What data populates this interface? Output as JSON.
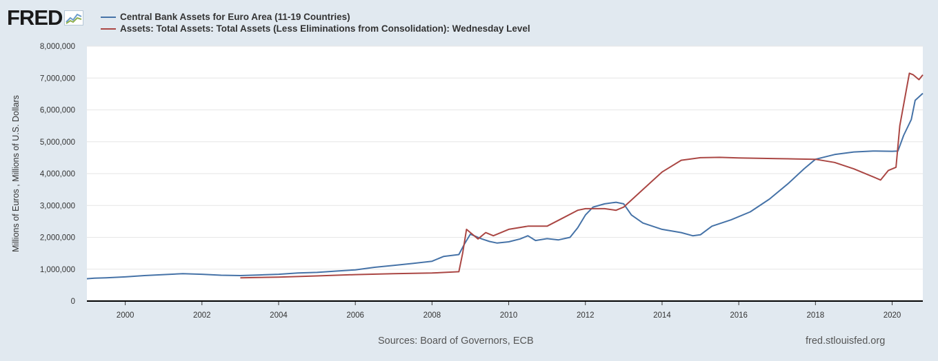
{
  "logo": {
    "text": "FRED",
    "mark_icon": "chart-line-icon"
  },
  "footer": {
    "source": "Sources: Board of Governors, ECB",
    "url": "fred.stlouisfed.org"
  },
  "chart_data": {
    "type": "line",
    "title": "",
    "xlabel": "",
    "ylabel": "Millions of Euros , Millions of U.S. Dollars",
    "xlim": [
      1999.0,
      2020.8
    ],
    "ylim": [
      0,
      8000000
    ],
    "yticks": [
      0,
      1000000,
      2000000,
      3000000,
      4000000,
      5000000,
      6000000,
      7000000,
      8000000
    ],
    "ytick_labels": [
      "0",
      "1,000,000",
      "2,000,000",
      "3,000,000",
      "4,000,000",
      "5,000,000",
      "6,000,000",
      "7,000,000",
      "8,000,000"
    ],
    "xticks": [
      2000,
      2002,
      2004,
      2006,
      2008,
      2010,
      2012,
      2014,
      2016,
      2018,
      2020
    ],
    "xtick_labels": [
      "2000",
      "2002",
      "2004",
      "2006",
      "2008",
      "2010",
      "2012",
      "2014",
      "2016",
      "2018",
      "2020"
    ],
    "grid": true,
    "legend_position": "top-left",
    "series": [
      {
        "name": "Central Bank Assets for Euro Area (11-19 Countries)",
        "color": "#4572a7",
        "x": [
          1999.0,
          1999.2,
          1999.5,
          2000.0,
          2000.5,
          2001.0,
          2001.5,
          2002.0,
          2002.5,
          2003.0,
          2003.5,
          2004.0,
          2004.5,
          2005.0,
          2005.5,
          2006.0,
          2006.5,
          2007.0,
          2007.5,
          2008.0,
          2008.3,
          2008.7,
          2008.85,
          2009.0,
          2009.3,
          2009.5,
          2009.7,
          2010.0,
          2010.3,
          2010.5,
          2010.7,
          2011.0,
          2011.3,
          2011.6,
          2011.8,
          2012.0,
          2012.2,
          2012.5,
          2012.8,
          2013.0,
          2013.2,
          2013.5,
          2014.0,
          2014.5,
          2014.8,
          2015.0,
          2015.3,
          2015.8,
          2016.3,
          2016.8,
          2017.3,
          2017.7,
          2018.0,
          2018.5,
          2019.0,
          2019.5,
          2020.0,
          2020.15,
          2020.3,
          2020.5,
          2020.6,
          2020.8
        ],
        "y": [
          700000,
          720000,
          730000,
          760000,
          800000,
          830000,
          860000,
          840000,
          810000,
          800000,
          820000,
          840000,
          880000,
          900000,
          940000,
          980000,
          1060000,
          1120000,
          1180000,
          1250000,
          1400000,
          1460000,
          1800000,
          2100000,
          1950000,
          1870000,
          1820000,
          1860000,
          1950000,
          2050000,
          1900000,
          1960000,
          1920000,
          2000000,
          2300000,
          2700000,
          2950000,
          3050000,
          3100000,
          3050000,
          2700000,
          2450000,
          2250000,
          2150000,
          2050000,
          2080000,
          2350000,
          2550000,
          2800000,
          3200000,
          3700000,
          4150000,
          4450000,
          4600000,
          4680000,
          4710000,
          4700000,
          4710000,
          5200000,
          5700000,
          6300000,
          6520000
        ]
      },
      {
        "name": "Assets: Total Assets: Total Assets (Less Eliminations from Consolidation): Wednesday Level",
        "color": "#aa4643",
        "x": [
          2003.0,
          2004.0,
          2005.0,
          2006.0,
          2007.0,
          2008.0,
          2008.7,
          2008.8,
          2008.9,
          2009.0,
          2009.2,
          2009.4,
          2009.6,
          2010.0,
          2010.5,
          2011.0,
          2011.4,
          2011.8,
          2012.0,
          2012.5,
          2012.8,
          2013.0,
          2013.5,
          2014.0,
          2014.5,
          2015.0,
          2015.5,
          2016.0,
          2016.5,
          2017.0,
          2017.5,
          2018.0,
          2018.5,
          2019.0,
          2019.5,
          2019.7,
          2019.9,
          2020.1,
          2020.2,
          2020.35,
          2020.45,
          2020.55,
          2020.7,
          2020.8
        ],
        "y": [
          730000,
          750000,
          790000,
          830000,
          860000,
          880000,
          920000,
          1500000,
          2250000,
          2150000,
          1950000,
          2150000,
          2050000,
          2250000,
          2350000,
          2350000,
          2600000,
          2850000,
          2900000,
          2900000,
          2850000,
          2950000,
          3500000,
          4050000,
          4420000,
          4500000,
          4510000,
          4490000,
          4480000,
          4470000,
          4460000,
          4450000,
          4350000,
          4150000,
          3900000,
          3800000,
          4100000,
          4200000,
          5500000,
          6500000,
          7150000,
          7100000,
          6950000,
          7100000
        ]
      }
    ]
  }
}
